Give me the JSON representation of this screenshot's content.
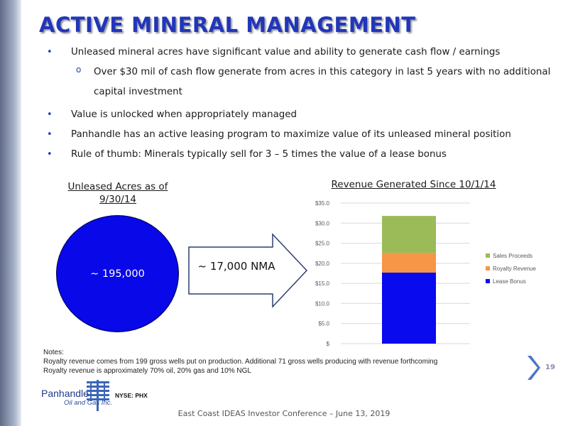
{
  "title": "ACTIVE MINERAL MANAGEMENT",
  "bullets": [
    "Unleased mineral acres have significant value and ability to generate cash flow / earnings",
    "Over $30 mil of cash flow generate from acres in this category in last 5 years with no additional capital investment",
    "Value is unlocked when appropriately managed",
    "Panhandle has an active leasing program to maximize value of its unleased mineral position",
    "Rule of thumb: Minerals typically sell for 3 – 5 times the value of a lease bonus"
  ],
  "bullet_marker": "•",
  "sub_bullet_marker": "o",
  "left_graphic": {
    "title": "Unleased Acres as of 9/30/14",
    "circle_value": "~ 195,000",
    "arrow_label": "~ 17,000 NMA",
    "circle_color": "#0808e8"
  },
  "chart_data": {
    "type": "bar",
    "stacked": true,
    "title": "Revenue Generated Since 10/1/14",
    "categories": [
      ""
    ],
    "series": [
      {
        "name": "Lease Bonus",
        "values": [
          17.7
        ],
        "color": "#0a0aee"
      },
      {
        "name": "Royalty Revenue",
        "values": [
          4.9
        ],
        "color": "#f79646"
      },
      {
        "name": "Sales Proceeds",
        "values": [
          9.2
        ],
        "color": "#9bbb59"
      }
    ],
    "ylim": [
      0,
      35
    ],
    "yticks": [
      "$",
      "$5.0",
      "$10.0",
      "$15.0",
      "$20.0",
      "$25.0",
      "$30.0",
      "$35.0"
    ],
    "ytick_values": [
      0,
      5,
      10,
      15,
      20,
      25,
      30,
      35
    ],
    "grid": true,
    "legend_position": "right",
    "legend_order": [
      "Sales Proceeds",
      "Royalty Revenue",
      "Lease Bonus"
    ]
  },
  "notes": {
    "heading": "Notes:",
    "lines": [
      "Royalty revenue comes from 199 gross wells put on production. Additional 71 gross wells producing with revenue forthcoming",
      "Royalty revenue is approximately 70% oil, 20% gas and 10% NGL"
    ]
  },
  "page_number": "19",
  "logo": {
    "name": "Panhandle",
    "sub": "Oil and Gas Inc.",
    "ticker": "NYSE: PHX"
  },
  "footer": "East Coast IDEAS Investor Conference – June 13, 2019",
  "colors": {
    "title": "#2136b8",
    "bullet": "#1f3fc4",
    "chevron": "#4a78c8"
  }
}
